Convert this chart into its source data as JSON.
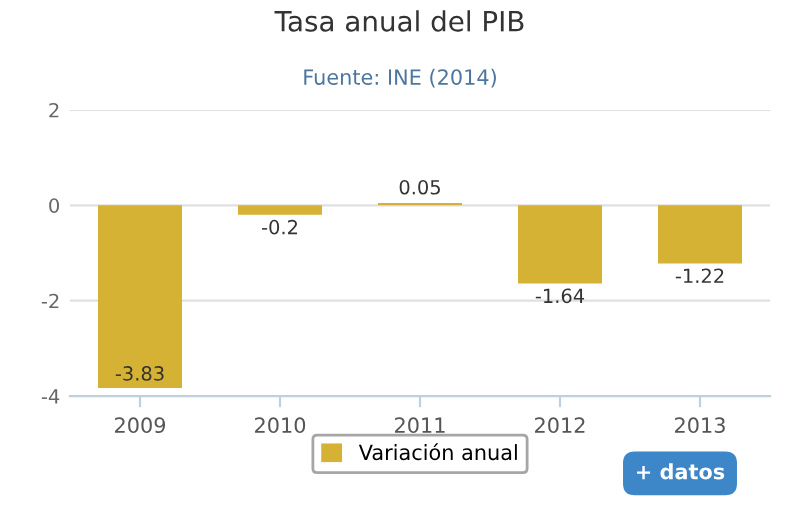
{
  "chart_data": {
    "type": "bar",
    "title": "Tasa anual del PIB",
    "subtitle": "Fuente: INE (2014)",
    "categories": [
      "2009",
      "2010",
      "2011",
      "2012",
      "2013"
    ],
    "series": [
      {
        "name": "Variación anual",
        "color": "#d6b234",
        "values": [
          -3.83,
          -0.2,
          0.05,
          -1.64,
          -1.22
        ]
      }
    ],
    "ylim": [
      -4,
      2
    ],
    "yticks": [
      -4,
      -2,
      0,
      2
    ],
    "grid": "y",
    "legend": "bottom",
    "data_labels": true,
    "annotations": [
      "+ datos"
    ]
  }
}
